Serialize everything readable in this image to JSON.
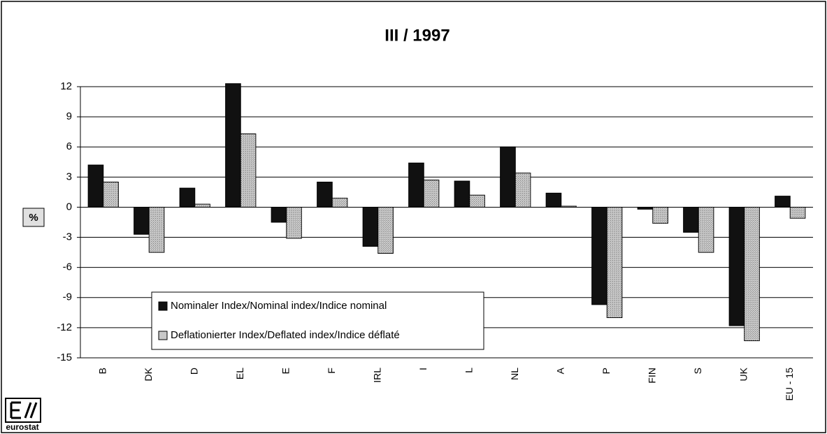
{
  "chart_data": {
    "type": "bar",
    "title": "III  /  1997",
    "y_label": "%",
    "logo_text": "eurostat",
    "categories": [
      "B",
      "DK",
      "D",
      "EL",
      "E",
      "F",
      "IRL",
      "I",
      "L",
      "NL",
      "A",
      "P",
      "FIN",
      "S",
      "UK",
      "EU - 15"
    ],
    "series": [
      {
        "name": "Nominaler Index/Nominal index/Indice nominal",
        "color": "#111111",
        "values": [
          4.2,
          -2.7,
          1.9,
          12.3,
          -1.5,
          2.5,
          -3.9,
          4.4,
          2.6,
          6.0,
          1.4,
          -9.7,
          -0.2,
          -2.5,
          -11.8,
          1.1
        ]
      },
      {
        "name": "Deflationierter Index/Deflated index/Indice déflaté",
        "color": "#c8c8c8",
        "values": [
          2.5,
          -4.5,
          0.3,
          7.3,
          -3.1,
          0.9,
          -4.6,
          2.7,
          1.2,
          3.4,
          0.1,
          -11.0,
          -1.6,
          -4.5,
          -13.3,
          -1.1
        ]
      }
    ],
    "ylim": [
      -15,
      12
    ],
    "yticks": [
      -15,
      -12,
      -9,
      -6,
      -3,
      0,
      3,
      6,
      9,
      12
    ],
    "grid": true,
    "legend": "bottom-left"
  }
}
